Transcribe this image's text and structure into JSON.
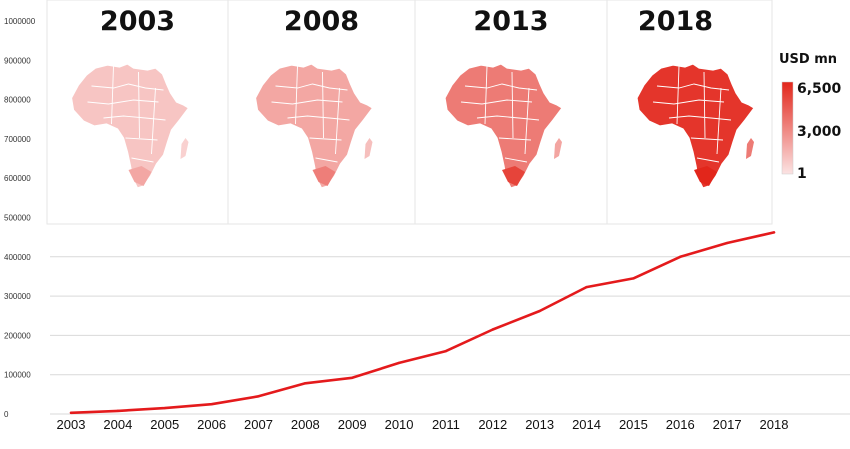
{
  "chart_data": [
    {
      "type": "line",
      "title": "",
      "xlabel": "",
      "ylabel": "",
      "grid": true,
      "x": [
        "2003",
        "2004",
        "2005",
        "2006",
        "2007",
        "2008",
        "2009",
        "2010",
        "2011",
        "2012",
        "2013",
        "2014",
        "2015",
        "2016",
        "2017",
        "2018"
      ],
      "series": [
        {
          "color": "#e41a1c",
          "values": [
            3000,
            8000,
            15000,
            25000,
            45000,
            78000,
            92000,
            130000,
            160000,
            215000,
            262000,
            323000,
            345000,
            400000,
            435000,
            462000
          ]
        }
      ],
      "ylim": [
        0,
        1000000
      ],
      "yticks": [
        "0",
        "100000",
        "200000",
        "300000",
        "400000",
        "500000",
        "600000",
        "700000",
        "800000",
        "900000",
        "1000000"
      ]
    },
    {
      "type": "heatmap",
      "subtype": "choropleth-small-multiples",
      "panels": [
        {
          "title": "2003"
        },
        {
          "title": "2008"
        },
        {
          "title": "2013"
        },
        {
          "title": "2018"
        }
      ],
      "legend": {
        "title": "USD mn",
        "labels": [
          "6,500",
          "3,000",
          "1"
        ],
        "values": [
          6500,
          3000,
          1
        ],
        "color_high": "#e2261b",
        "color_low": "#fbe3e3",
        "placement": "right"
      }
    }
  ]
}
